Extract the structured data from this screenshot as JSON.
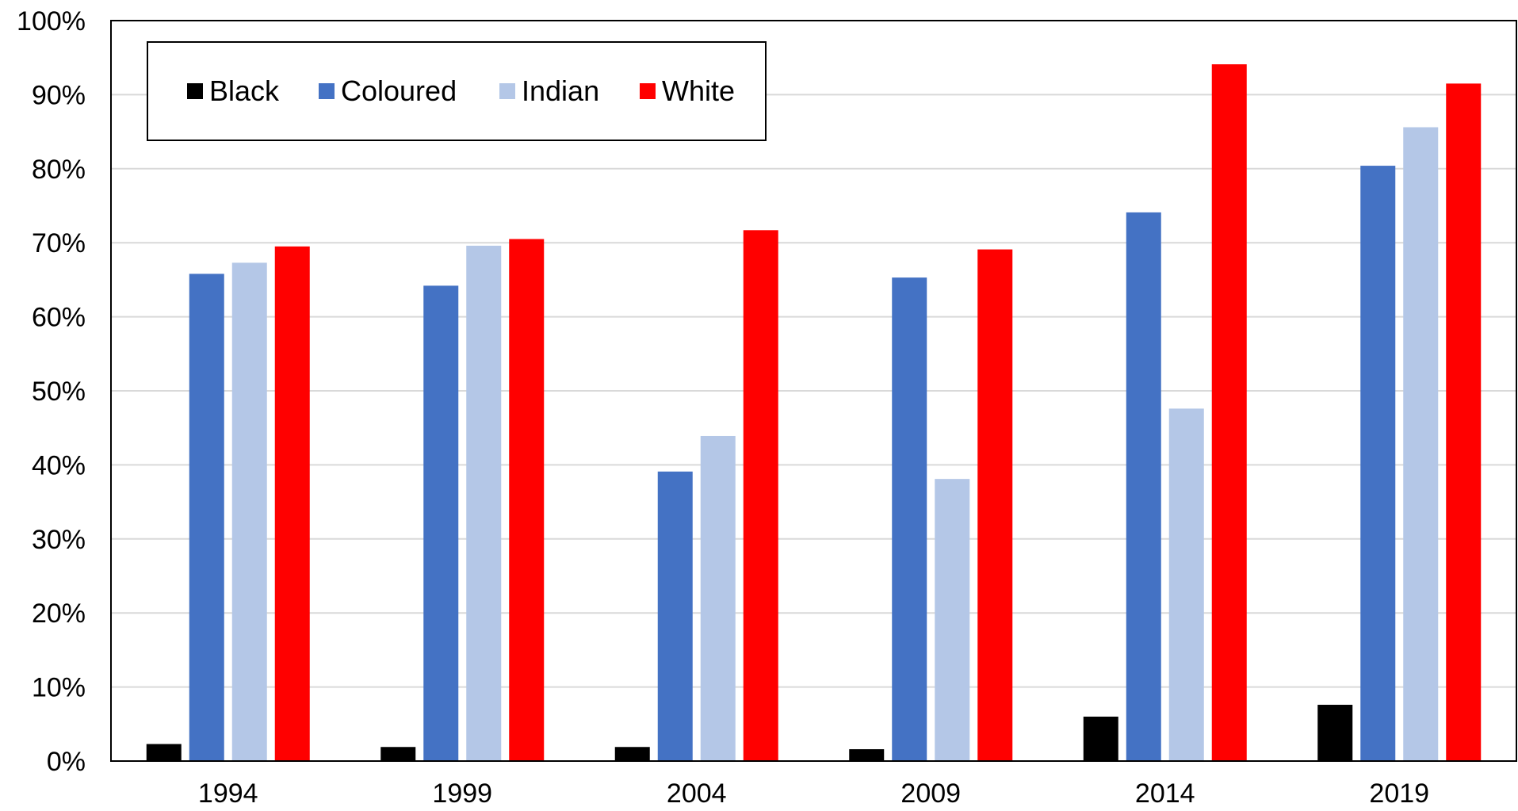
{
  "chart_data": {
    "type": "bar",
    "title": "",
    "xlabel": "",
    "ylabel": "",
    "categories": [
      "1994",
      "1999",
      "2004",
      "2009",
      "2014",
      "2019"
    ],
    "series": [
      {
        "name": "Black",
        "color": "#000000",
        "values": [
          2.3,
          1.9,
          1.9,
          1.6,
          6.0,
          7.6
        ]
      },
      {
        "name": "Coloured",
        "color": "#4472C4",
        "values": [
          65.8,
          64.2,
          39.1,
          65.3,
          74.1,
          80.4
        ]
      },
      {
        "name": "Indian",
        "color": "#B4C7E7",
        "values": [
          67.3,
          69.6,
          43.9,
          38.1,
          47.6,
          85.6
        ]
      },
      {
        "name": "White",
        "color": "#FF0000",
        "values": [
          69.5,
          70.5,
          71.7,
          69.1,
          94.1,
          91.5
        ]
      }
    ],
    "ylim": [
      0,
      100
    ],
    "yticks": [
      "0%",
      "10%",
      "20%",
      "30%",
      "40%",
      "50%",
      "60%",
      "70%",
      "80%",
      "90%",
      "100%"
    ],
    "grid": true,
    "legend_position": "top-left"
  }
}
